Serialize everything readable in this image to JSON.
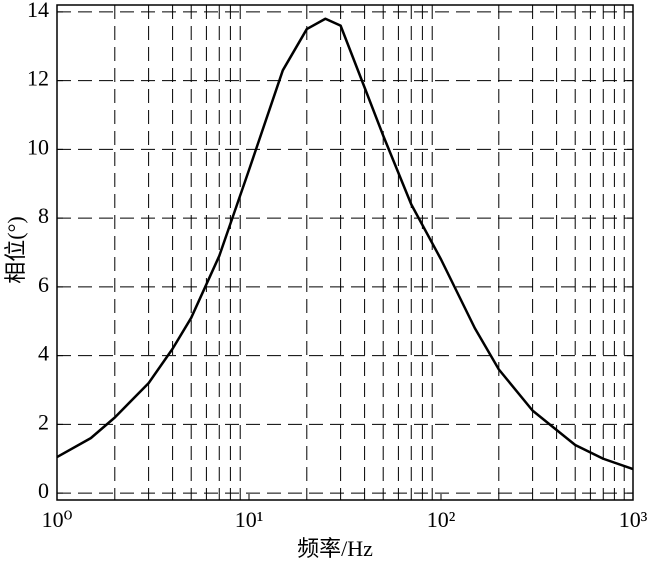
{
  "chart_data": {
    "type": "line",
    "xlabel": "频率/Hz",
    "ylabel": "相位(°)",
    "x": [
      1,
      1.5,
      2,
      3,
      4,
      5,
      7,
      10,
      15,
      20,
      25,
      30,
      40,
      50,
      70,
      100,
      150,
      200,
      300,
      500,
      700,
      1000
    ],
    "series": [
      {
        "color": "#000000",
        "values": [
          1.05,
          1.6,
          2.2,
          3.2,
          4.2,
          5.1,
          6.9,
          9.4,
          12.3,
          13.5,
          13.8,
          13.6,
          11.8,
          10.4,
          8.4,
          6.8,
          4.8,
          3.6,
          2.4,
          1.4,
          1.0,
          0.7
        ]
      }
    ],
    "xscale": "log",
    "xlim": [
      1,
      1000
    ],
    "xticks": [
      {
        "value": 1,
        "label": "10⁰"
      },
      {
        "value": 10,
        "label": "10¹"
      },
      {
        "value": 100,
        "label": "10²"
      },
      {
        "value": 1000,
        "label": "10³"
      }
    ],
    "ylim": [
      -0.2,
      14.2
    ],
    "yticks": [
      0,
      2,
      4,
      6,
      8,
      10,
      12,
      14
    ],
    "grid": true
  }
}
